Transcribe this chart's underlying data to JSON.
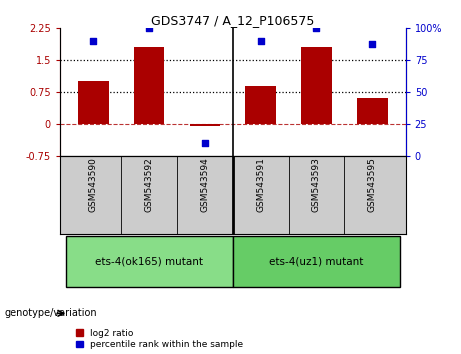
{
  "title": "GDS3747 / A_12_P106575",
  "samples": [
    "GSM543590",
    "GSM543592",
    "GSM543594",
    "GSM543591",
    "GSM543593",
    "GSM543595"
  ],
  "log2_ratio": [
    1.0,
    1.82,
    -0.05,
    0.9,
    1.82,
    0.62
  ],
  "percentile_rank": [
    90,
    100,
    10,
    90,
    100,
    88
  ],
  "bar_color": "#aa0000",
  "dot_color": "#0000cc",
  "ylim_left": [
    -0.75,
    2.25
  ],
  "ylim_right": [
    0,
    100
  ],
  "yticks_left": [
    -0.75,
    0,
    0.75,
    1.5,
    2.25
  ],
  "yticks_right": [
    0,
    25,
    50,
    75,
    100
  ],
  "ytick_labels_left": [
    "-0.75",
    "0",
    "0.75",
    "1.5",
    "2.25"
  ],
  "ytick_labels_right": [
    "0",
    "25",
    "50",
    "75",
    "100%"
  ],
  "hline_dotted": [
    0.75,
    1.5
  ],
  "hline_dash": 0,
  "group1_label": "ets-4(ok165) mutant",
  "group2_label": "ets-4(uz1) mutant",
  "group1_color": "#88dd88",
  "group2_color": "#66cc66",
  "legend_bar_label": "log2 ratio",
  "legend_dot_label": "percentile rank within the sample",
  "genotype_label": "genotype/variation",
  "sample_bg_color": "#cccccc",
  "bar_width": 0.55
}
